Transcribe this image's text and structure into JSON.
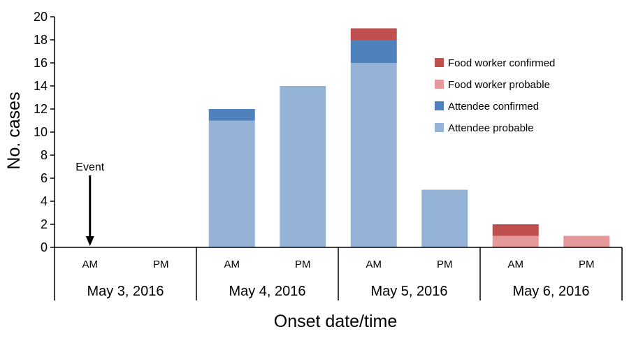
{
  "chart_data": {
    "type": "bar",
    "stacked": true,
    "ylabel": "No. cases",
    "xlabel": "Onset date/time",
    "ylim": [
      0,
      20
    ],
    "yticks": [
      0,
      2,
      4,
      6,
      8,
      10,
      12,
      14,
      16,
      18,
      20
    ],
    "grid": false,
    "legend_position": "right",
    "categories": [
      "AM",
      "PM",
      "AM",
      "PM",
      "AM",
      "PM",
      "AM",
      "PM"
    ],
    "dates": [
      "May 3, 2016",
      "May 4, 2016",
      "May 5, 2016",
      "May 6, 2016"
    ],
    "series": [
      {
        "name": "Attendee probable",
        "color": "#95b3d7",
        "values": [
          0,
          0,
          11,
          14,
          16,
          5,
          0,
          0
        ]
      },
      {
        "name": "Attendee confirmed",
        "color": "#4f81bd",
        "values": [
          0,
          0,
          1,
          0,
          2,
          0,
          0,
          0
        ]
      },
      {
        "name": "Food worker probable",
        "color": "#e6999a",
        "values": [
          0,
          0,
          0,
          0,
          0,
          0,
          1,
          1
        ]
      },
      {
        "name": "Food worker confirmed",
        "color": "#c0504d",
        "values": [
          0,
          0,
          0,
          0,
          1,
          0,
          1,
          0
        ]
      }
    ],
    "legend_order": [
      "Food worker confirmed",
      "Food worker probable",
      "Attendee confirmed",
      "Attendee probable"
    ],
    "annotation": {
      "text": "Event",
      "category_index": 0,
      "value": 6
    }
  }
}
